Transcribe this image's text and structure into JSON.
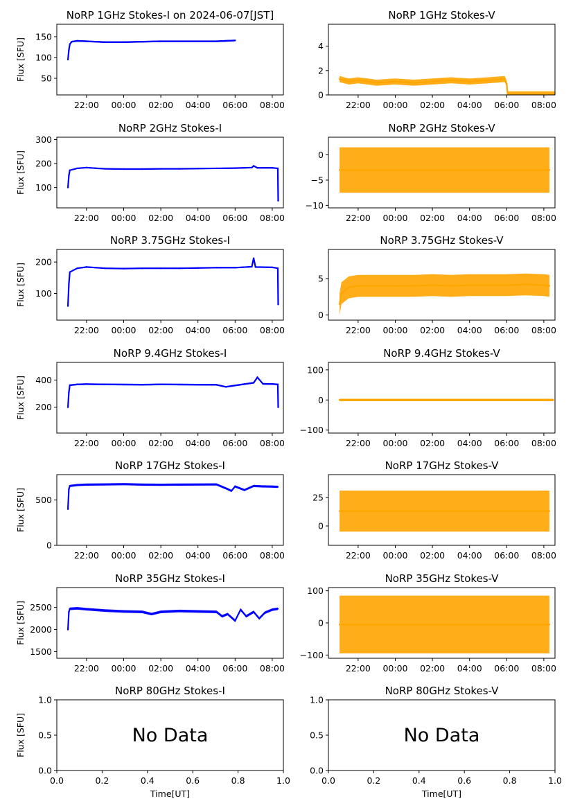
{
  "chart_data": [
    {
      "type": "line",
      "title": "NoRP 1GHz Stokes-I on 2024-06-07[JST]",
      "ylabel": "Flux [SFU]",
      "xlabel": "",
      "xlim": [
        -3.6,
        8.6
      ],
      "xticks": [
        "22:00",
        "00:00",
        "02:00",
        "04:00",
        "06:00",
        "08:00"
      ],
      "ylim": [
        10,
        180
      ],
      "yticks": [
        50,
        100,
        150
      ],
      "color": "#0000ff",
      "series": [
        {
          "x": [
            -3.0,
            -2.95,
            -2.9,
            -2.8,
            -2.5,
            -2,
            -1,
            0,
            1,
            2,
            3,
            4,
            5,
            5.5,
            6.0
          ],
          "y": [
            95,
            118,
            132,
            138,
            140,
            139,
            137,
            137,
            138,
            139,
            139,
            139,
            139,
            140,
            141
          ]
        }
      ],
      "band": 4
    },
    {
      "type": "line",
      "title": "NoRP 1GHz Stokes-V",
      "ylabel": "",
      "xlabel": "",
      "xlim": [
        -3.6,
        8.6
      ],
      "xticks": [
        "22:00",
        "00:00",
        "02:00",
        "04:00",
        "06:00",
        "08:00"
      ],
      "ylim": [
        0,
        5.8
      ],
      "yticks": [
        0,
        2,
        4
      ],
      "color": "#ffa500",
      "series": [
        {
          "x": [
            -3.0,
            -2.5,
            -2,
            -1,
            0,
            1,
            2,
            3,
            4,
            5,
            5.9,
            6.0,
            6.05,
            7,
            8,
            8.7
          ],
          "y": [
            1.3,
            1.1,
            1.2,
            1.0,
            1.1,
            1.0,
            1.1,
            1.2,
            1.1,
            1.2,
            1.3,
            0.9,
            0.05,
            0.05,
            0.05,
            0.05
          ]
        }
      ],
      "band": 0.5
    },
    {
      "type": "line",
      "title": "NoRP 2GHz Stokes-I",
      "ylabel": "Flux [SFU]",
      "xlabel": "",
      "xlim": [
        -3.6,
        8.6
      ],
      "xticks": [
        "22:00",
        "00:00",
        "02:00",
        "04:00",
        "06:00",
        "08:00"
      ],
      "ylim": [
        15,
        310
      ],
      "yticks": [
        100,
        200,
        300
      ],
      "color": "#0000ff",
      "series": [
        {
          "x": [
            -3.0,
            -2.95,
            -2.9,
            -2.5,
            -2,
            -1,
            0,
            1,
            2,
            3,
            4,
            5,
            6,
            6.9,
            7,
            7.2,
            8,
            8.3,
            8.32
          ],
          "y": [
            100,
            150,
            172,
            180,
            183,
            178,
            177,
            177,
            178,
            178,
            179,
            180,
            181,
            183,
            190,
            182,
            182,
            180,
            45
          ]
        }
      ],
      "band": 5
    },
    {
      "type": "line",
      "title": "NoRP 2GHz Stokes-V",
      "ylabel": "",
      "xlabel": "",
      "xlim": [
        -3.6,
        8.6
      ],
      "xticks": [
        "22:00",
        "00:00",
        "02:00",
        "04:00",
        "06:00",
        "08:00"
      ],
      "ylim": [
        -10.5,
        3.5
      ],
      "yticks": [
        -10,
        -5,
        0
      ],
      "color": "#ffa500",
      "series": [
        {
          "x": [
            -3.0,
            -2,
            -1,
            0,
            1,
            2,
            3,
            4,
            5,
            6,
            7,
            8,
            8.3
          ],
          "y": [
            -3,
            -3,
            -3,
            -3,
            -3,
            -3,
            -3,
            -3,
            -3,
            -3,
            -3,
            -3,
            -3
          ]
        }
      ],
      "band": 9
    },
    {
      "type": "line",
      "title": "NoRP 3.75GHz Stokes-I",
      "ylabel": "Flux [SFU]",
      "xlabel": "",
      "xlim": [
        -3.6,
        8.6
      ],
      "xticks": [
        "22:00",
        "00:00",
        "02:00",
        "04:00",
        "06:00",
        "08:00"
      ],
      "ylim": [
        15,
        240
      ],
      "yticks": [
        100,
        200
      ],
      "color": "#0000ff",
      "series": [
        {
          "x": [
            -3.0,
            -2.95,
            -2.9,
            -2.5,
            -2,
            -1,
            0,
            1,
            2,
            3,
            4,
            5,
            6,
            6.9,
            7.0,
            7.1,
            8,
            8.3,
            8.32
          ],
          "y": [
            60,
            130,
            168,
            180,
            184,
            180,
            179,
            180,
            180,
            180,
            181,
            182,
            182,
            185,
            212,
            184,
            183,
            180,
            65
          ]
        }
      ],
      "band": 4
    },
    {
      "type": "line",
      "title": "NoRP 3.75GHz Stokes-V",
      "ylabel": "",
      "xlabel": "",
      "xlim": [
        -3.6,
        8.6
      ],
      "xticks": [
        "22:00",
        "00:00",
        "02:00",
        "04:00",
        "06:00",
        "08:00"
      ],
      "ylim": [
        -0.7,
        9.0
      ],
      "yticks": [
        0,
        5
      ],
      "color": "#ffa500",
      "series": [
        {
          "x": [
            -3.0,
            -2.9,
            -2.5,
            -2,
            -1,
            0,
            1,
            2,
            3,
            4,
            5,
            6,
            7,
            8,
            8.3
          ],
          "y": [
            1.5,
            3.0,
            3.8,
            4.0,
            4.0,
            4.0,
            4.0,
            4.1,
            4.0,
            4.1,
            4.1,
            4.1,
            4.2,
            4.1,
            4.0
          ]
        }
      ],
      "band": 3
    },
    {
      "type": "line",
      "title": "NoRP 9.4GHz Stokes-I",
      "ylabel": "Flux [SFU]",
      "xlabel": "",
      "xlim": [
        -3.6,
        8.6
      ],
      "xticks": [
        "22:00",
        "00:00",
        "02:00",
        "04:00",
        "06:00",
        "08:00"
      ],
      "ylim": [
        10,
        530
      ],
      "yticks": [
        200,
        400
      ],
      "color": "#0000ff",
      "series": [
        {
          "x": [
            -3.0,
            -2.95,
            -2.9,
            -2.5,
            -2,
            -1,
            0,
            1,
            2,
            3,
            4,
            5,
            5.5,
            6,
            6.5,
            7,
            7.2,
            7.5,
            8,
            8.3,
            8.32
          ],
          "y": [
            200,
            310,
            362,
            368,
            370,
            368,
            367,
            366,
            368,
            367,
            366,
            365,
            350,
            360,
            370,
            380,
            420,
            372,
            371,
            368,
            200
          ]
        }
      ],
      "band": 12
    },
    {
      "type": "line",
      "title": "NoRP 9.4GHz Stokes-V",
      "ylabel": "",
      "xlabel": "",
      "xlim": [
        -3.6,
        8.6
      ],
      "xticks": [
        "22:00",
        "00:00",
        "02:00",
        "04:00",
        "06:00",
        "08:00"
      ],
      "ylim": [
        -110,
        125
      ],
      "yticks": [
        -100,
        0,
        100
      ],
      "color": "#ffa500",
      "series": [
        {
          "x": [
            -3.0,
            -2,
            -1,
            0,
            1,
            2,
            3,
            4,
            5,
            6,
            7,
            8,
            8.5
          ],
          "y": [
            0,
            0,
            0,
            0,
            0,
            0,
            0,
            0,
            0,
            0,
            0,
            0,
            0
          ]
        }
      ],
      "band": 8
    },
    {
      "type": "line",
      "title": "NoRP 17GHz Stokes-I",
      "ylabel": "Flux [SFU]",
      "xlabel": "",
      "xlim": [
        -3.6,
        8.6
      ],
      "xticks": [
        "22:00",
        "00:00",
        "02:00",
        "04:00",
        "06:00",
        "08:00"
      ],
      "ylim": [
        0,
        780
      ],
      "yticks": [
        0,
        500
      ],
      "color": "#0000ff",
      "series": [
        {
          "x": [
            -3.0,
            -2.95,
            -2.9,
            -2.5,
            -2,
            -1,
            0,
            1,
            2,
            3,
            4,
            5,
            5.6,
            5.8,
            6,
            6.5,
            7,
            7.5,
            8,
            8.3
          ],
          "y": [
            400,
            620,
            655,
            665,
            670,
            672,
            675,
            670,
            668,
            670,
            671,
            672,
            620,
            600,
            650,
            610,
            655,
            650,
            648,
            645
          ]
        }
      ],
      "band": 25
    },
    {
      "type": "line",
      "title": "NoRP 17GHz Stokes-V",
      "ylabel": "",
      "xlabel": "",
      "xlim": [
        -3.6,
        8.6
      ],
      "xticks": [
        "22:00",
        "00:00",
        "02:00",
        "04:00",
        "06:00",
        "08:00"
      ],
      "ylim": [
        -17,
        45
      ],
      "yticks": [
        0,
        25
      ],
      "color": "#ffa500",
      "series": [
        {
          "x": [
            -3.0,
            -2,
            -1,
            0,
            1,
            2,
            3,
            4,
            5,
            6,
            7,
            8,
            8.3
          ],
          "y": [
            13,
            13,
            13,
            13,
            13,
            13,
            13,
            13,
            13,
            13,
            13,
            13,
            13
          ]
        }
      ],
      "band": 36
    },
    {
      "type": "line",
      "title": "NoRP 35GHz Stokes-I",
      "ylabel": "Flux [SFU]",
      "xlabel": "",
      "xlim": [
        -3.6,
        8.6
      ],
      "xticks": [
        "22:00",
        "00:00",
        "02:00",
        "04:00",
        "06:00",
        "08:00"
      ],
      "ylim": [
        1350,
        2950
      ],
      "yticks": [
        1500,
        2000,
        2500
      ],
      "color": "#0000ff",
      "series": [
        {
          "x": [
            -3.0,
            -2.95,
            -2.9,
            -2.5,
            -2,
            -1,
            0,
            1,
            1.5,
            2,
            3,
            4,
            5,
            5.3,
            5.6,
            6,
            6.3,
            6.6,
            7,
            7.3,
            7.6,
            8,
            8.3
          ],
          "y": [
            2000,
            2400,
            2470,
            2480,
            2460,
            2430,
            2410,
            2400,
            2350,
            2400,
            2420,
            2410,
            2400,
            2300,
            2350,
            2200,
            2450,
            2300,
            2400,
            2250,
            2380,
            2450,
            2470
          ]
        }
      ],
      "band": 60
    },
    {
      "type": "line",
      "title": "NoRP 35GHz Stokes-V",
      "ylabel": "",
      "xlabel": "",
      "xlim": [
        -3.6,
        8.6
      ],
      "xticks": [
        "22:00",
        "00:00",
        "02:00",
        "04:00",
        "06:00",
        "08:00"
      ],
      "ylim": [
        -110,
        110
      ],
      "yticks": [
        -100,
        0,
        100
      ],
      "color": "#ffa500",
      "series": [
        {
          "x": [
            -3.0,
            -2,
            -1,
            0,
            1,
            2,
            3,
            4,
            5,
            6,
            7,
            8,
            8.3
          ],
          "y": [
            -5,
            -5,
            -5,
            -5,
            -5,
            -5,
            -5,
            -5,
            -5,
            -5,
            -5,
            -5,
            -5
          ]
        }
      ],
      "band": 180
    },
    {
      "type": "empty",
      "title": "NoRP 80GHz Stokes-I",
      "ylabel": "Flux [SFU]",
      "xlabel": "Time[UT]",
      "xlim": [
        0,
        1
      ],
      "xticks": [
        "0.0",
        "0.2",
        "0.4",
        "0.6",
        "0.8",
        "1.0"
      ],
      "ylim": [
        0,
        1
      ],
      "yticks": [
        "0.0",
        "0.5",
        "1.0"
      ],
      "annotation": "No Data"
    },
    {
      "type": "empty",
      "title": "NoRP 80GHz Stokes-V",
      "ylabel": "",
      "xlabel": "Time[UT]",
      "xlim": [
        0,
        1
      ],
      "xticks": [
        "0.0",
        "0.2",
        "0.4",
        "0.6",
        "0.8",
        "1.0"
      ],
      "ylim": [
        0,
        1
      ],
      "yticks": [
        "0.0",
        "0.5",
        "1.0"
      ],
      "annotation": "No Data"
    }
  ]
}
